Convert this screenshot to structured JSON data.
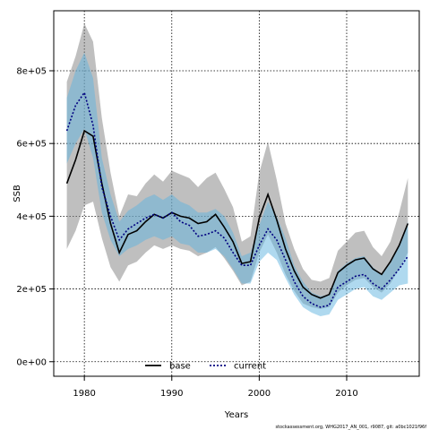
{
  "chart_data": {
    "type": "area",
    "xlabel": "Years",
    "ylabel": "SSB",
    "xlim": [
      1976.5,
      2018.3
    ],
    "ylim": [
      -40000,
      965000
    ],
    "x_ticks": [
      1980,
      1990,
      2000,
      2010
    ],
    "x_tick_labels": [
      "1980",
      "1990",
      "2000",
      "2010"
    ],
    "y_ticks": [
      0,
      200000,
      400000,
      600000,
      800000
    ],
    "y_tick_labels": [
      "0e+00",
      "2e+05",
      "4e+05",
      "6e+05",
      "8e+05"
    ],
    "grid": true,
    "legend_position": "bottom-center",
    "x": [
      1978,
      1979,
      1980,
      1981,
      1982,
      1983,
      1984,
      1985,
      1986,
      1987,
      1988,
      1989,
      1990,
      1991,
      1992,
      1993,
      1994,
      1995,
      1996,
      1997,
      1998,
      1999,
      2000,
      2001,
      2002,
      2003,
      2004,
      2005,
      2006,
      2007,
      2008,
      2009,
      2010,
      2011,
      2012,
      2013,
      2014,
      2015,
      2016,
      2017
    ],
    "series": [
      {
        "name": "base",
        "color": "#000000",
        "band_color": "#808080",
        "line_style": "solid",
        "values": [
          490000,
          555000,
          635000,
          620000,
          490000,
          380000,
          300000,
          350000,
          360000,
          385000,
          405000,
          395000,
          410000,
          400000,
          395000,
          380000,
          385000,
          405000,
          370000,
          330000,
          270000,
          275000,
          395000,
          460000,
          390000,
          310000,
          250000,
          205000,
          185000,
          175000,
          185000,
          245000,
          265000,
          280000,
          285000,
          255000,
          240000,
          275000,
          320000,
          380000
        ],
        "lower": [
          310000,
          360000,
          430000,
          440000,
          340000,
          260000,
          220000,
          265000,
          275000,
          300000,
          320000,
          310000,
          320000,
          310000,
          305000,
          290000,
          300000,
          315000,
          285000,
          250000,
          210000,
          220000,
          300000,
          350000,
          300000,
          240000,
          195000,
          160000,
          150000,
          145000,
          150000,
          190000,
          210000,
          225000,
          230000,
          205000,
          190000,
          215000,
          255000,
          300000
        ],
        "upper": [
          770000,
          840000,
          930000,
          880000,
          670000,
          520000,
          400000,
          460000,
          455000,
          490000,
          515000,
          495000,
          525000,
          515000,
          505000,
          480000,
          505000,
          520000,
          475000,
          425000,
          330000,
          345000,
          520000,
          605000,
          500000,
          380000,
          310000,
          255000,
          225000,
          220000,
          230000,
          305000,
          330000,
          355000,
          360000,
          315000,
          290000,
          330000,
          410000,
          505000
        ]
      },
      {
        "name": "current",
        "color": "#000080",
        "band_color": "#5fb3e0",
        "line_style": "dotted",
        "values": [
          635000,
          705000,
          740000,
          650000,
          480000,
          400000,
          335000,
          365000,
          380000,
          395000,
          405000,
          395000,
          410000,
          385000,
          375000,
          345000,
          350000,
          360000,
          340000,
          300000,
          265000,
          265000,
          320000,
          365000,
          335000,
          280000,
          220000,
          180000,
          160000,
          150000,
          155000,
          205000,
          220000,
          235000,
          240000,
          215000,
          200000,
          225000,
          255000,
          290000
        ],
        "lower": [
          545000,
          600000,
          640000,
          560000,
          410000,
          335000,
          290000,
          310000,
          320000,
          335000,
          345000,
          335000,
          345000,
          325000,
          320000,
          300000,
          300000,
          310000,
          290000,
          255000,
          215000,
          215000,
          275000,
          300000,
          280000,
          230000,
          185000,
          150000,
          135000,
          125000,
          130000,
          170000,
          185000,
          200000,
          205000,
          180000,
          170000,
          190000,
          210000,
          215000
        ],
        "upper": [
          725000,
          800000,
          850000,
          780000,
          560000,
          460000,
          385000,
          415000,
          430000,
          450000,
          460000,
          445000,
          460000,
          440000,
          430000,
          410000,
          410000,
          420000,
          400000,
          355000,
          290000,
          300000,
          375000,
          440000,
          400000,
          340000,
          265000,
          220000,
          190000,
          180000,
          185000,
          250000,
          270000,
          285000,
          290000,
          260000,
          240000,
          270000,
          320000,
          385000
        ]
      }
    ]
  },
  "footer": "stockassessment.org, WHG2017_AN_001, r9087, git: a0bc1021f96f"
}
